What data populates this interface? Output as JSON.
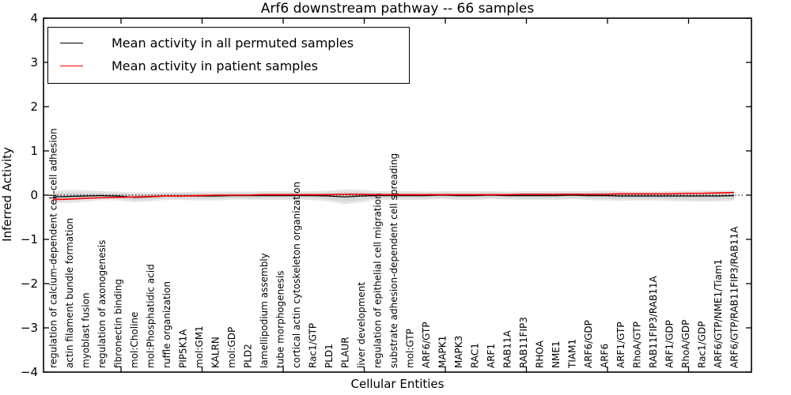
{
  "title": "Arf6 downstream pathway -- 66 samples",
  "legend": {
    "entries": [
      {
        "label": "Mean activity in all permuted samples",
        "color": "#000000"
      },
      {
        "label": "Mean activity in patient samples",
        "color": "#ff0000"
      }
    ]
  },
  "chart_data": {
    "type": "line",
    "title": "Arf6 downstream pathway -- 66 samples",
    "xlabel": "Cellular Entities",
    "ylabel": "Inferred Activity",
    "ylim": [
      -4,
      4
    ],
    "yticks": [
      4,
      3,
      2,
      1,
      0,
      -1,
      -2,
      -3,
      -4
    ],
    "grid": false,
    "legend_position": "upper left",
    "categories": [
      "regulation of calcium-dependent cell-cell adhesion",
      "actin filament bundle formation",
      "myoblast fusion",
      "regulation of axonogenesis",
      "fibronectin binding",
      "mol:Choline",
      "mol:Phosphatidic acid",
      "ruffle organization",
      "PIP5K1A",
      "mol:GM1",
      "KALRN",
      "mol:GDP",
      "PLD2",
      "lamellipodium assembly",
      "tube morphogenesis",
      "cortical actin cytoskeleton organization",
      "Rac1/GTP",
      "PLD1",
      "PLAUR",
      "liver development",
      "regulation of epithelial cell migration",
      "substrate adhesion-dependent cell spreading",
      "mol:GTP",
      "ARF6/GTP",
      "MAPK1",
      "MAPK3",
      "RAC1",
      "ARF1",
      "RAB11A",
      "RAB11FIP3",
      "RHOA",
      "NME1",
      "TIAM1",
      "ARF6/GDP",
      "ARF6",
      "ARF1/GTP",
      "RhoA/GTP",
      "RAB11FIP3/RAB11A",
      "ARF1/GDP",
      "RhoA/GDP",
      "Rac1/GDP",
      "ARF6/GTP/NME1/Tiam1",
      "ARF6/GTP/RAB11FIP3/RAB11A"
    ],
    "series": [
      {
        "name": "Mean activity in all permuted samples",
        "color": "#000000",
        "style": "solid",
        "values": [
          -0.04,
          -0.03,
          -0.02,
          -0.01,
          -0.02,
          -0.05,
          -0.04,
          -0.02,
          -0.02,
          -0.02,
          -0.02,
          -0.01,
          -0.01,
          -0.01,
          -0.01,
          -0.01,
          -0.01,
          -0.02,
          -0.04,
          -0.02,
          -0.01,
          -0.01,
          -0.01,
          -0.01,
          0.0,
          -0.01,
          -0.01,
          0.0,
          -0.01,
          -0.01,
          -0.01,
          -0.01,
          0.0,
          -0.01,
          -0.01,
          -0.02,
          -0.02,
          -0.02,
          -0.02,
          -0.02,
          -0.02,
          -0.02,
          -0.01
        ]
      },
      {
        "name": "Mean activity in patient samples",
        "color": "#ff0000",
        "style": "solid",
        "values": [
          -0.1,
          -0.09,
          -0.07,
          -0.06,
          -0.05,
          -0.04,
          -0.03,
          -0.02,
          -0.02,
          -0.01,
          0.0,
          0.0,
          0.0,
          0.01,
          0.01,
          0.01,
          0.01,
          0.01,
          0.02,
          0.02,
          0.01,
          0.01,
          0.01,
          0.01,
          0.01,
          0.01,
          0.01,
          0.01,
          0.01,
          0.02,
          0.02,
          0.02,
          0.02,
          0.02,
          0.02,
          0.03,
          0.03,
          0.03,
          0.03,
          0.04,
          0.04,
          0.05,
          0.06
        ]
      }
    ],
    "zero_line": {
      "y": 0,
      "style": "dotted",
      "color": "#000000"
    },
    "bands": [
      {
        "name": "permuted-spread-outer",
        "color": "#e6e6e6",
        "half_widths": [
          0.13,
          0.15,
          0.13,
          0.1,
          0.1,
          0.11,
          0.1,
          0.09,
          0.09,
          0.1,
          0.1,
          0.09,
          0.09,
          0.1,
          0.1,
          0.09,
          0.1,
          0.12,
          0.17,
          0.14,
          0.1,
          0.1,
          0.1,
          0.09,
          0.09,
          0.1,
          0.1,
          0.09,
          0.09,
          0.1,
          0.1,
          0.1,
          0.09,
          0.1,
          0.11,
          0.11,
          0.1,
          0.1,
          0.11,
          0.12,
          0.13,
          0.12,
          0.12
        ]
      },
      {
        "name": "permuted-spread-inner",
        "color": "#d7d7d7",
        "half_widths": [
          0.08,
          0.09,
          0.08,
          0.06,
          0.06,
          0.07,
          0.06,
          0.06,
          0.06,
          0.06,
          0.06,
          0.06,
          0.06,
          0.06,
          0.06,
          0.06,
          0.06,
          0.08,
          0.11,
          0.09,
          0.06,
          0.06,
          0.06,
          0.06,
          0.06,
          0.06,
          0.06,
          0.06,
          0.06,
          0.06,
          0.06,
          0.06,
          0.06,
          0.06,
          0.07,
          0.07,
          0.06,
          0.06,
          0.07,
          0.08,
          0.08,
          0.08,
          0.08
        ]
      }
    ]
  }
}
